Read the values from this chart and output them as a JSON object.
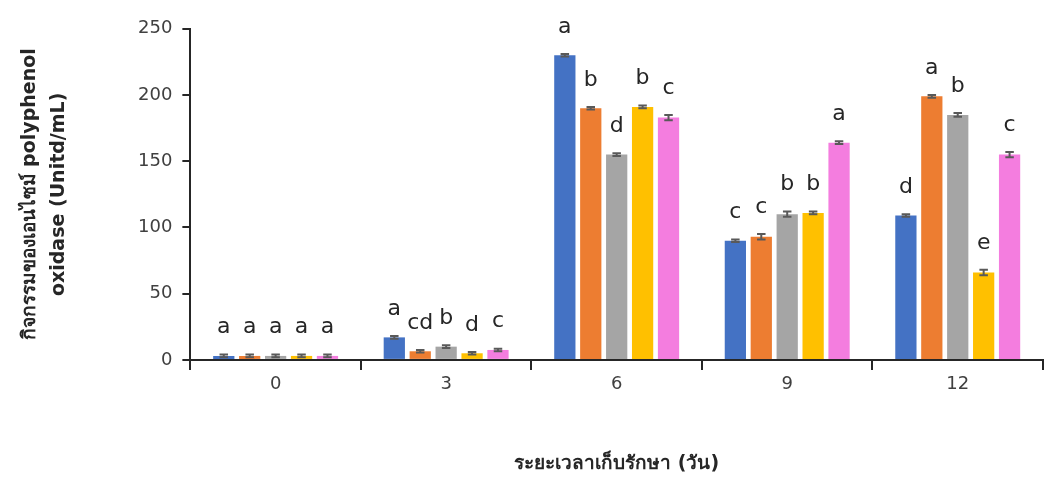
{
  "chart_data": {
    "type": "bar",
    "xlabel": "ระยะเวลาเก็บรักษา (วัน)",
    "ylabel": "กิจกรรมของเอนไซม์ polyphenol oxidase (Unitd/mL)",
    "categories": [
      "0",
      "3",
      "6",
      "9",
      "12"
    ],
    "series": [
      {
        "color": "#4472c4",
        "values": [
          3,
          17,
          230,
          90,
          109
        ],
        "errors": [
          1,
          1,
          1,
          1,
          1
        ],
        "value_labels": [
          "a",
          "a",
          "a",
          "c",
          "d"
        ]
      },
      {
        "color": "#ed7d31",
        "values": [
          3,
          6.5,
          190,
          93,
          199
        ],
        "errors": [
          1,
          1,
          1,
          2,
          1
        ],
        "value_labels": [
          "a",
          "cd",
          "b",
          "c",
          "a"
        ]
      },
      {
        "color": "#a5a5a5",
        "values": [
          3,
          10,
          155,
          110,
          185
        ],
        "errors": [
          1,
          1,
          1,
          2,
          1.5
        ],
        "value_labels": [
          "a",
          "b",
          "d",
          "b",
          "b"
        ]
      },
      {
        "color": "#ffc000",
        "values": [
          3,
          5,
          191,
          111,
          66
        ],
        "errors": [
          1,
          1,
          1,
          1,
          2
        ],
        "value_labels": [
          "a",
          "d",
          "b",
          "b",
          "e"
        ]
      },
      {
        "color": "#f47ddf",
        "values": [
          3,
          7.5,
          183,
          164,
          155
        ],
        "errors": [
          1,
          1,
          2,
          1,
          2
        ],
        "value_labels": [
          "a",
          "c",
          "c",
          "a",
          "c"
        ]
      }
    ],
    "ylim": [
      0,
      250
    ],
    "yticks": [
      0,
      50,
      100,
      150,
      200,
      250
    ]
  }
}
